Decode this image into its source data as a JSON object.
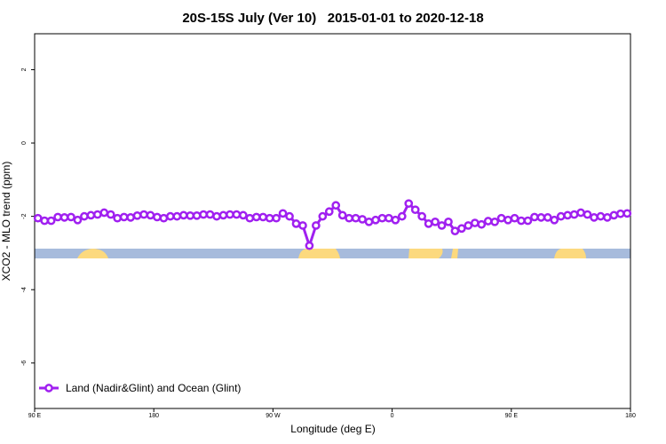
{
  "chart_data": {
    "type": "line",
    "title": "20S-15S July (Ver 10)   2015-01-01 to 2020-12-18",
    "x_label": "Longitude (deg E)",
    "y_label": "XCO2 - MLO trend (ppm)",
    "xlim": [
      90,
      540
    ],
    "ylim": [
      -7.24,
      2.98
    ],
    "xticks": [
      {
        "value": 90,
        "label": "90 E"
      },
      180,
      {
        "value": 270,
        "label": "90 W"
      },
      {
        "value": 360,
        "label": "0"
      },
      {
        "value": 450,
        "label": "90 E"
      },
      {
        "value": 540,
        "label": "180"
      }
    ],
    "yticks": [
      2,
      0,
      -2,
      -4,
      -6
    ],
    "legend": "bottom-left",
    "x": [
      92.5,
      97.5,
      102.5,
      107.5,
      112.5,
      117.5,
      122.5,
      127.5,
      132.5,
      137.5,
      142.5,
      147.5,
      152.5,
      157.5,
      162.5,
      167.5,
      172.5,
      177.5,
      182.5,
      187.5,
      192.5,
      197.5,
      202.5,
      207.5,
      212.5,
      217.5,
      222.5,
      227.5,
      232.5,
      237.5,
      242.5,
      247.5,
      252.5,
      257.5,
      262.5,
      267.5,
      272.5,
      277.5,
      282.5,
      287.5,
      292.5,
      297.5,
      302.5,
      307.5,
      312.5,
      317.5,
      322.5,
      327.5,
      332.5,
      337.5,
      342.5,
      347.5,
      352.5,
      357.5,
      362.5,
      367.5,
      372.5,
      377.5,
      382.5,
      387.5,
      392.5,
      397.5,
      402.5,
      407.5,
      412.5,
      417.5,
      422.5,
      427.5,
      432.5,
      437.5,
      442.5,
      447.5,
      452.5,
      457.5,
      462.5,
      467.5,
      472.5,
      477.5,
      482.5,
      487.5,
      492.5,
      497.5,
      502.5,
      507.5,
      512.5,
      517.5,
      522.5,
      527.5,
      532.5,
      537.5
    ],
    "series": [
      {
        "name": "Land (Nadir&Glint) and Ocean (Glint)",
        "color": "#a020f0",
        "values": [
          -2.05,
          -2.12,
          -2.12,
          -2.02,
          -2.03,
          -2.02,
          -2.1,
          -2.0,
          -1.97,
          -1.95,
          -1.9,
          -1.95,
          -2.05,
          -2.02,
          -2.03,
          -1.98,
          -1.95,
          -1.97,
          -2.02,
          -2.05,
          -2.0,
          -2.0,
          -1.97,
          -1.98,
          -1.98,
          -1.95,
          -1.95,
          -2.0,
          -1.97,
          -1.95,
          -1.95,
          -1.97,
          -2.05,
          -2.02,
          -2.02,
          -2.05,
          -2.05,
          -1.92,
          -2.0,
          -2.2,
          -2.25,
          -2.8,
          -2.25,
          -2.0,
          -1.87,
          -1.7,
          -1.97,
          -2.05,
          -2.05,
          -2.08,
          -2.15,
          -2.1,
          -2.05,
          -2.05,
          -2.1,
          -2.0,
          -1.65,
          -1.82,
          -2.0,
          -2.2,
          -2.15,
          -2.25,
          -2.15,
          -2.4,
          -2.33,
          -2.25,
          -2.18,
          -2.22,
          -2.13,
          -2.15,
          -2.05,
          -2.1,
          -2.05,
          -2.12,
          -2.12,
          -2.02,
          -2.03,
          -2.03,
          -2.1,
          -2.0,
          -1.97,
          -1.95,
          -1.9,
          -1.95,
          -2.03,
          -2.0,
          -2.03,
          -1.97,
          -1.93,
          -1.92
        ]
      }
    ]
  }
}
